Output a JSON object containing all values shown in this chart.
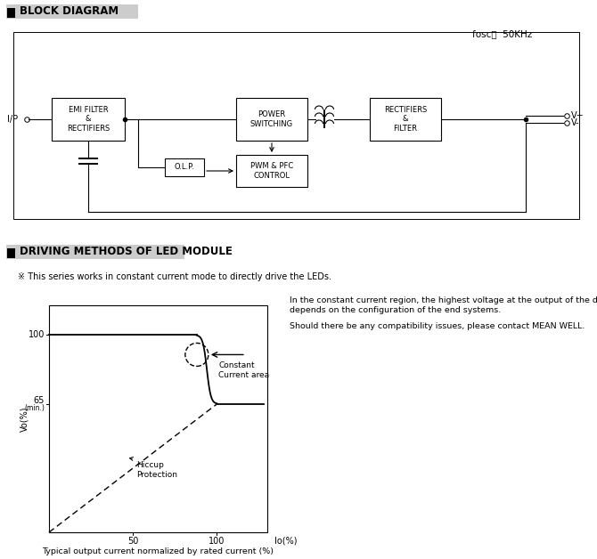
{
  "title1": "BLOCK DIAGRAM",
  "title2": "DRIVING METHODS OF LED MODULE",
  "fosc_label": "fosc：  50KHz",
  "ip_label": "I/P",
  "vplus_label": "V+",
  "vminus_label": "V-",
  "box1_text": "EMI FILTER\n&\nRECTIFIERS",
  "box2_text": "POWER\nSWITCHING",
  "box3_text": "RECTIFIERS\n&\nFILTER",
  "box4_text": "O.L.P.",
  "box5_text": "PWM & PFC\nCONTROL",
  "series_note": "※ This series works in constant current mode to directly drive the LEDs.",
  "const_region_text1": "In the constant current region, the highest voltage at the output of the driver",
  "const_region_text2": "depends on the configuration of the end systems.",
  "const_region_text3": "Should there be any compatibility issues, please contact MEAN WELL.",
  "constant_current_area": "Constant\nCurrent area",
  "hiccup_protection": "Hiccup\nProtection",
  "xlabel": "Io(%)",
  "ylabel": "Vo(%)",
  "caption": "Typical output current normalized by rated current (%)",
  "bg_color": "#ffffff",
  "header_bg": "#cccccc"
}
